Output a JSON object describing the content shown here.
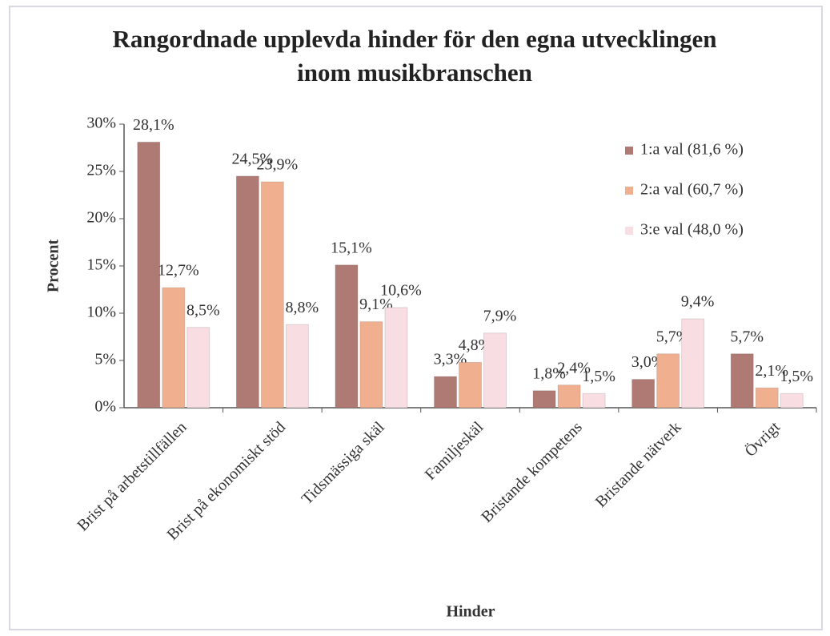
{
  "chart_data": {
    "type": "bar",
    "title": "Rangordnade upplevda hinder för den egna utvecklingen inom musikbranschen",
    "x_label": "Hinder",
    "y_label": "Procent",
    "categories": [
      "Brist på arbetstillfällen",
      "Brist på ekonomiskt stöd",
      "Tidsmässiga skäl",
      "Familjeskäl",
      "Bristande kompetens",
      "Bristande nätverk",
      "Övrigt"
    ],
    "series": [
      {
        "name": "1:a val (81,6 %)",
        "color": "#b07a74",
        "values": [
          28.1,
          24.5,
          15.1,
          3.3,
          1.8,
          3.0,
          5.7
        ],
        "value_labels": [
          "28,1%",
          "24,5%",
          "15,1%",
          "3,3%",
          "1,8%",
          "3,0%",
          "5,7%"
        ]
      },
      {
        "name": "2:a val (60,7 %)",
        "color": "#f0b090",
        "values": [
          12.7,
          23.9,
          9.1,
          4.8,
          2.4,
          5.7,
          2.1
        ],
        "value_labels": [
          "12,7%",
          "23,9%",
          "9,1%",
          "4,8%",
          "2,4%",
          "5,7%",
          "2,1%"
        ]
      },
      {
        "name": "3:e val (48,0 %)",
        "color": "#f8dde3",
        "values": [
          8.5,
          8.8,
          10.6,
          7.9,
          1.5,
          9.4,
          1.5
        ],
        "value_labels": [
          "8,5%",
          "8,8%",
          "10,6%",
          "7,9%",
          "1,5%",
          "9,4%",
          "1,5%"
        ]
      }
    ],
    "ylim": [
      0,
      30
    ],
    "yticks": [
      {
        "value": 0,
        "label": "0%"
      },
      {
        "value": 5,
        "label": "5%"
      },
      {
        "value": 10,
        "label": "10%"
      },
      {
        "value": 15,
        "label": "15%"
      },
      {
        "value": 20,
        "label": "20%"
      },
      {
        "value": 25,
        "label": "25%"
      },
      {
        "value": 30,
        "label": "30%"
      }
    ],
    "legend": "top-right"
  }
}
